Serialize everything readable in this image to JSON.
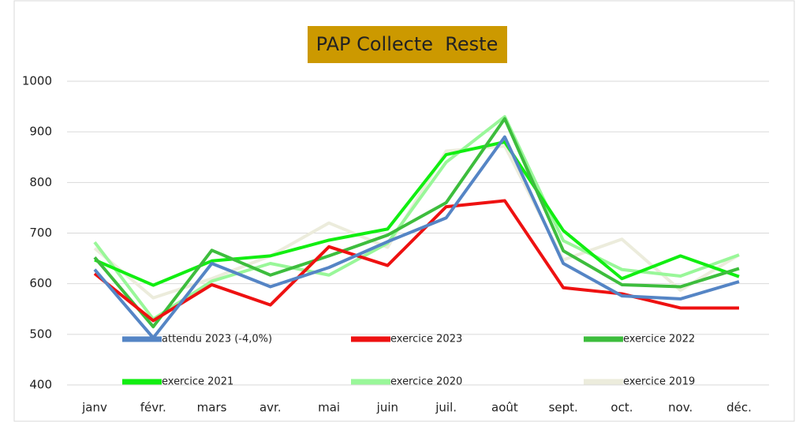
{
  "chart_data": {
    "type": "line",
    "title": "PAP Collecte  Reste",
    "categories": [
      "janv",
      "févr.",
      "mars",
      "avr.",
      "mai",
      "juin",
      "juil.",
      "août",
      "sept.",
      "oct.",
      "nov.",
      "déc."
    ],
    "ylim": [
      400,
      1000
    ],
    "yticks": [
      400,
      500,
      600,
      700,
      800,
      900,
      1000
    ],
    "grid": true,
    "series": [
      {
        "name": "attendu 2023 (-4,0%)",
        "color": "#5585c5",
        "values": [
          628,
          493,
          640,
          594,
          632,
          683,
          730,
          890,
          640,
          576,
          570,
          604
        ]
      },
      {
        "name": "exercice 2023",
        "color": "#ee1111",
        "values": [
          620,
          527,
          598,
          558,
          673,
          636,
          752,
          764,
          592,
          580,
          552,
          552
        ]
      },
      {
        "name": "exercice 2022",
        "color": "#3dbd3d",
        "values": [
          652,
          515,
          666,
          617,
          655,
          696,
          760,
          926,
          665,
          598,
          594,
          630
        ]
      },
      {
        "name": "exercice 2021",
        "color": "#11ee11",
        "values": [
          647,
          597,
          645,
          655,
          686,
          708,
          855,
          880,
          705,
          610,
          655,
          614
        ]
      },
      {
        "name": "exercice 2020",
        "color": "#99f799",
        "values": [
          682,
          530,
          605,
          640,
          617,
          680,
          840,
          930,
          685,
          628,
          615,
          657
        ]
      },
      {
        "name": "exercice 2019",
        "color": "#ececdc",
        "values": [
          670,
          572,
          610,
          655,
          720,
          672,
          862,
          872,
          647,
          688,
          587,
          657
        ]
      }
    ]
  }
}
